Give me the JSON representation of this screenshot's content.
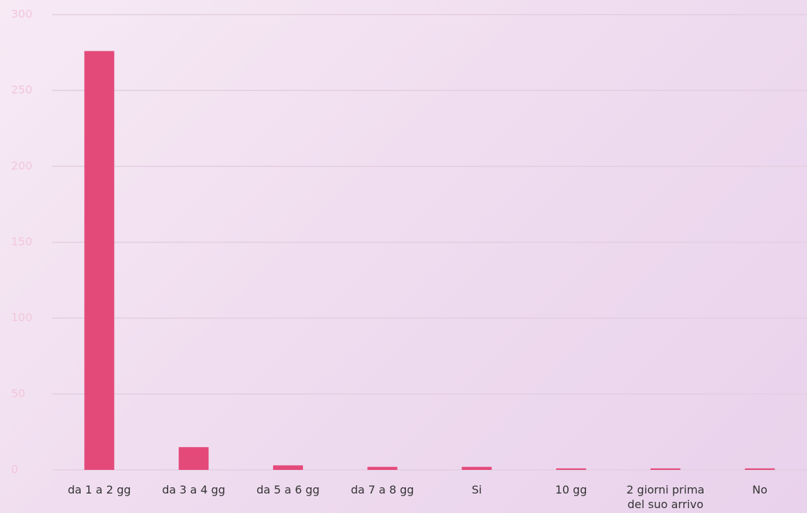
{
  "chart_data": {
    "type": "bar",
    "categories": [
      "da 1 a 2 gg",
      "da 3 a 4 gg",
      "da 5 a 6 gg",
      "da 7 a 8 gg",
      "Si",
      "10 gg",
      "2 giorni prima del suo arrivo",
      "No"
    ],
    "values": [
      276,
      15,
      3,
      2,
      2,
      1,
      1,
      1
    ],
    "color": "#e34a7a",
    "ylim": [
      0,
      300
    ],
    "yticks": [
      0,
      50,
      100,
      150,
      200,
      250,
      300
    ],
    "grid": true
  }
}
